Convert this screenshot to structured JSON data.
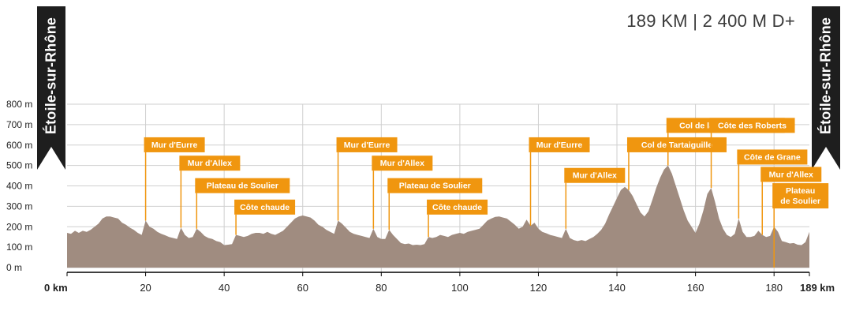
{
  "summary": "189 KM | 2 400 M D+",
  "start_town": "Étoile-sur-Rhône",
  "end_town": "Étoile-sur-Rhône",
  "colors": {
    "profile": "#a08c80",
    "label_bg": "#f0960f",
    "label_text": "#ffffff",
    "grid": "#cfcfcf",
    "banner": "#1e1e1e"
  },
  "chart_data": {
    "type": "area",
    "title": "189 KM | 2 400 M D+",
    "xlabel": "",
    "ylabel": "",
    "xlim": [
      0,
      189
    ],
    "ylim": [
      0,
      800
    ],
    "x_ticks": [
      0,
      20,
      40,
      60,
      80,
      100,
      120,
      140,
      160,
      180,
      189
    ],
    "x_tick_labels": [
      "0 km",
      "20",
      "40",
      "60",
      "80",
      "100",
      "120",
      "140",
      "160",
      "180",
      "189 km"
    ],
    "y_ticks": [
      0,
      100,
      200,
      300,
      400,
      500,
      600,
      700,
      800
    ],
    "y_tick_labels": [
      "0 m",
      "100 m",
      "200 m",
      "300 m",
      "400 m",
      "500 m",
      "600 m",
      "700 m",
      "800 m"
    ],
    "grid": true,
    "profile": [
      [
        0,
        170
      ],
      [
        1,
        165
      ],
      [
        2,
        180
      ],
      [
        3,
        170
      ],
      [
        4,
        180
      ],
      [
        5,
        175
      ],
      [
        6,
        185
      ],
      [
        7,
        200
      ],
      [
        8,
        215
      ],
      [
        9,
        240
      ],
      [
        10,
        250
      ],
      [
        11,
        250
      ],
      [
        12,
        245
      ],
      [
        13,
        240
      ],
      [
        14,
        220
      ],
      [
        15,
        210
      ],
      [
        16,
        195
      ],
      [
        17,
        185
      ],
      [
        18,
        170
      ],
      [
        19,
        160
      ],
      [
        20,
        230
      ],
      [
        21,
        200
      ],
      [
        22,
        190
      ],
      [
        23,
        175
      ],
      [
        24,
        165
      ],
      [
        25,
        158
      ],
      [
        26,
        150
      ],
      [
        27,
        145
      ],
      [
        28,
        140
      ],
      [
        29,
        195
      ],
      [
        30,
        160
      ],
      [
        31,
        145
      ],
      [
        32,
        150
      ],
      [
        33,
        190
      ],
      [
        34,
        175
      ],
      [
        35,
        155
      ],
      [
        36,
        145
      ],
      [
        37,
        140
      ],
      [
        38,
        130
      ],
      [
        39,
        125
      ],
      [
        40,
        110
      ],
      [
        41,
        112
      ],
      [
        42,
        115
      ],
      [
        43,
        160
      ],
      [
        44,
        155
      ],
      [
        45,
        150
      ],
      [
        46,
        155
      ],
      [
        47,
        165
      ],
      [
        48,
        170
      ],
      [
        49,
        170
      ],
      [
        50,
        165
      ],
      [
        51,
        175
      ],
      [
        52,
        165
      ],
      [
        53,
        160
      ],
      [
        54,
        170
      ],
      [
        55,
        180
      ],
      [
        56,
        200
      ],
      [
        57,
        220
      ],
      [
        58,
        240
      ],
      [
        59,
        250
      ],
      [
        60,
        255
      ],
      [
        61,
        250
      ],
      [
        62,
        245
      ],
      [
        63,
        230
      ],
      [
        64,
        210
      ],
      [
        65,
        200
      ],
      [
        66,
        185
      ],
      [
        67,
        175
      ],
      [
        68,
        165
      ],
      [
        69,
        230
      ],
      [
        70,
        215
      ],
      [
        71,
        195
      ],
      [
        72,
        175
      ],
      [
        73,
        165
      ],
      [
        74,
        160
      ],
      [
        75,
        155
      ],
      [
        76,
        150
      ],
      [
        77,
        145
      ],
      [
        78,
        190
      ],
      [
        79,
        150
      ],
      [
        80,
        140
      ],
      [
        81,
        140
      ],
      [
        82,
        185
      ],
      [
        83,
        160
      ],
      [
        84,
        140
      ],
      [
        85,
        120
      ],
      [
        86,
        115
      ],
      [
        87,
        118
      ],
      [
        88,
        110
      ],
      [
        89,
        112
      ],
      [
        90,
        110
      ],
      [
        91,
        115
      ],
      [
        92,
        150
      ],
      [
        93,
        145
      ],
      [
        94,
        150
      ],
      [
        95,
        160
      ],
      [
        96,
        155
      ],
      [
        97,
        150
      ],
      [
        98,
        160
      ],
      [
        99,
        165
      ],
      [
        100,
        170
      ],
      [
        101,
        165
      ],
      [
        102,
        175
      ],
      [
        103,
        180
      ],
      [
        104,
        185
      ],
      [
        105,
        190
      ],
      [
        106,
        210
      ],
      [
        107,
        230
      ],
      [
        108,
        240
      ],
      [
        109,
        248
      ],
      [
        110,
        250
      ],
      [
        111,
        245
      ],
      [
        112,
        240
      ],
      [
        113,
        225
      ],
      [
        114,
        210
      ],
      [
        115,
        190
      ],
      [
        116,
        200
      ],
      [
        117,
        235
      ],
      [
        118,
        205
      ],
      [
        119,
        220
      ],
      [
        120,
        190
      ],
      [
        121,
        175
      ],
      [
        122,
        168
      ],
      [
        123,
        160
      ],
      [
        124,
        155
      ],
      [
        125,
        150
      ],
      [
        126,
        145
      ],
      [
        127,
        190
      ],
      [
        128,
        145
      ],
      [
        129,
        135
      ],
      [
        130,
        130
      ],
      [
        131,
        135
      ],
      [
        132,
        130
      ],
      [
        133,
        140
      ],
      [
        134,
        150
      ],
      [
        135,
        165
      ],
      [
        136,
        185
      ],
      [
        137,
        215
      ],
      [
        138,
        260
      ],
      [
        139,
        300
      ],
      [
        140,
        340
      ],
      [
        141,
        380
      ],
      [
        142,
        395
      ],
      [
        143,
        380
      ],
      [
        144,
        350
      ],
      [
        145,
        310
      ],
      [
        146,
        270
      ],
      [
        147,
        250
      ],
      [
        148,
        275
      ],
      [
        149,
        330
      ],
      [
        150,
        390
      ],
      [
        151,
        440
      ],
      [
        152,
        480
      ],
      [
        153,
        500
      ],
      [
        154,
        460
      ],
      [
        155,
        400
      ],
      [
        156,
        340
      ],
      [
        157,
        280
      ],
      [
        158,
        230
      ],
      [
        159,
        200
      ],
      [
        160,
        170
      ],
      [
        161,
        215
      ],
      [
        162,
        280
      ],
      [
        163,
        360
      ],
      [
        164,
        390
      ],
      [
        165,
        320
      ],
      [
        166,
        240
      ],
      [
        167,
        190
      ],
      [
        168,
        160
      ],
      [
        169,
        150
      ],
      [
        170,
        165
      ],
      [
        171,
        240
      ],
      [
        172,
        175
      ],
      [
        173,
        150
      ],
      [
        174,
        150
      ],
      [
        175,
        155
      ],
      [
        176,
        180
      ],
      [
        177,
        160
      ],
      [
        178,
        150
      ],
      [
        179,
        155
      ],
      [
        180,
        200
      ],
      [
        181,
        175
      ],
      [
        182,
        130
      ],
      [
        183,
        125
      ],
      [
        184,
        118
      ],
      [
        185,
        120
      ],
      [
        186,
        112
      ],
      [
        187,
        110
      ],
      [
        188,
        125
      ],
      [
        189,
        175
      ]
    ],
    "annotations": [
      {
        "label": "Mur d'Eurre",
        "km": 20,
        "alt": 230,
        "text_alt": 580
      },
      {
        "label": "Mur d'Allex",
        "km": 29,
        "alt": 195,
        "text_alt": 490
      },
      {
        "label": "Plateau de Soulier",
        "km": 33,
        "alt": 190,
        "text_alt": 380
      },
      {
        "label": "Côte chaude",
        "km": 43,
        "alt": 160,
        "text_alt": 275
      },
      {
        "label": "Mur d'Eurre",
        "km": 69,
        "alt": 230,
        "text_alt": 580
      },
      {
        "label": "Mur d'Allex",
        "km": 78,
        "alt": 190,
        "text_alt": 490
      },
      {
        "label": "Plateau de Soulier",
        "km": 82,
        "alt": 185,
        "text_alt": 380
      },
      {
        "label": "Côte chaude",
        "km": 92,
        "alt": 150,
        "text_alt": 275
      },
      {
        "label": "Mur d'Eurre",
        "km": 118,
        "alt": 205,
        "text_alt": 580
      },
      {
        "label": "Mur d'Allex",
        "km": 127,
        "alt": 190,
        "text_alt": 430
      },
      {
        "label": "Col de Tartaiguille",
        "km": 143,
        "alt": 380,
        "text_alt": 580
      },
      {
        "label": "Col de la Grande Limite",
        "km": 153,
        "alt": 500,
        "text_alt": 675
      },
      {
        "label": "Côte des Roberts",
        "km": 164,
        "alt": 390,
        "text_alt": 675
      },
      {
        "label": "Côte de Grane",
        "km": 171,
        "alt": 240,
        "text_alt": 520
      },
      {
        "label": "Mur d'Allex",
        "km": 177,
        "alt": 160,
        "text_alt": 435
      },
      {
        "label": "Plateau de Soulier",
        "km": 180,
        "alt": 0,
        "text_alt": 305,
        "multiline": true
      }
    ]
  }
}
